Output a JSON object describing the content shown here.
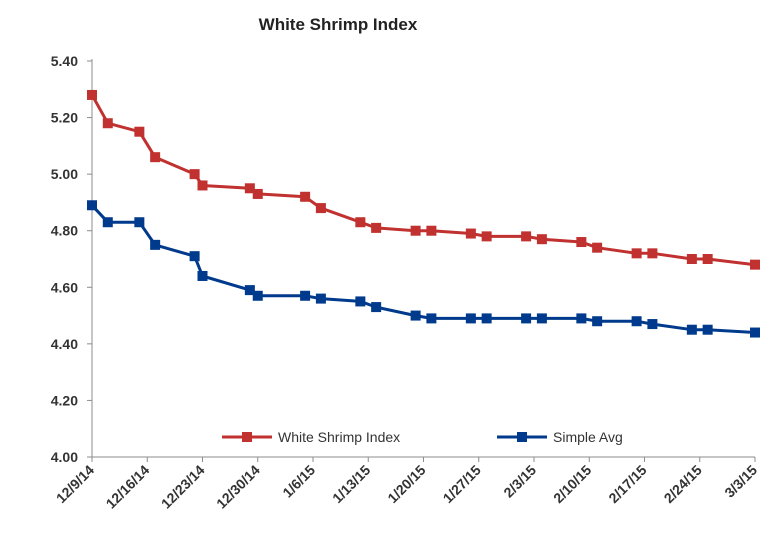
{
  "chart_data": {
    "type": "line",
    "title": "White Shrimp Index",
    "xlabel": "",
    "ylabel": "",
    "ylim": [
      4.0,
      5.4
    ],
    "yticks": [
      "4.00",
      "4.20",
      "4.40",
      "4.60",
      "4.80",
      "5.00",
      "5.20",
      "5.40"
    ],
    "grid": false,
    "legend_position": "bottom-right inside plot",
    "x_start_date": "2014-12-09",
    "x_end_date": "2015-03-03",
    "xtick_labels": [
      "12/9/14",
      "12/16/14",
      "12/23/14",
      "12/30/14",
      "1/6/15",
      "1/13/15",
      "1/20/15",
      "1/27/15",
      "2/3/15",
      "2/10/15",
      "2/17/15",
      "2/24/15",
      "3/3/15"
    ],
    "x": [
      "2014-12-09",
      "2014-12-11",
      "2014-12-15",
      "2014-12-17",
      "2014-12-22",
      "2014-12-23",
      "2014-12-29",
      "2014-12-30",
      "2015-01-05",
      "2015-01-07",
      "2015-01-12",
      "2015-01-14",
      "2015-01-19",
      "2015-01-21",
      "2015-01-26",
      "2015-01-28",
      "2015-02-02",
      "2015-02-04",
      "2015-02-09",
      "2015-02-11",
      "2015-02-16",
      "2015-02-18",
      "2015-02-23",
      "2015-02-25",
      "2015-03-03"
    ],
    "series": [
      {
        "name": "White Shrimp Index",
        "color": "#c0312f",
        "values": [
          5.28,
          5.18,
          5.15,
          5.06,
          5.0,
          4.96,
          4.95,
          4.93,
          4.92,
          4.88,
          4.83,
          4.81,
          4.8,
          4.8,
          4.79,
          4.78,
          4.78,
          4.77,
          4.76,
          4.74,
          4.72,
          4.72,
          4.7,
          4.7,
          4.68
        ]
      },
      {
        "name": "Simple Avg",
        "color": "#003a8c",
        "values": [
          4.89,
          4.83,
          4.83,
          4.75,
          4.71,
          4.64,
          4.59,
          4.57,
          4.57,
          4.56,
          4.55,
          4.53,
          4.5,
          4.49,
          4.49,
          4.49,
          4.49,
          4.49,
          4.49,
          4.48,
          4.48,
          4.47,
          4.45,
          4.45,
          4.44
        ]
      }
    ]
  }
}
